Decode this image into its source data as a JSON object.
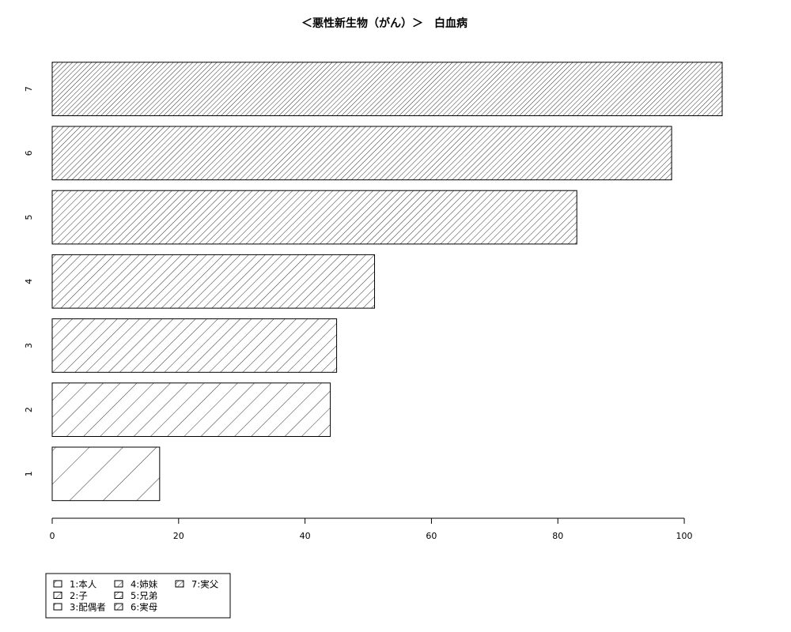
{
  "chart_data": {
    "type": "bar",
    "orientation": "horizontal",
    "title": "＜悪性新生物（がん）＞　白血病",
    "categories": [
      "1",
      "2",
      "3",
      "4",
      "5",
      "6",
      "7"
    ],
    "values": [
      17,
      44,
      45,
      51,
      83,
      98,
      106
    ],
    "xlim": [
      0,
      106
    ],
    "xticks": [
      0,
      20,
      40,
      60,
      80,
      100
    ],
    "xlabel": "",
    "ylabel": "",
    "grid": false,
    "fill_style": "diagonal-hatch, density increasing with category",
    "legend": {
      "placement": "bottom-left",
      "entries": [
        "1:本人",
        "2:子",
        "3:配偶者",
        "4:姉妹",
        "5:兄弟",
        "6:実母",
        "7:実父"
      ]
    },
    "colors": {
      "hatch": "#000000",
      "outline": "#000000",
      "background": "#ffffff"
    }
  }
}
